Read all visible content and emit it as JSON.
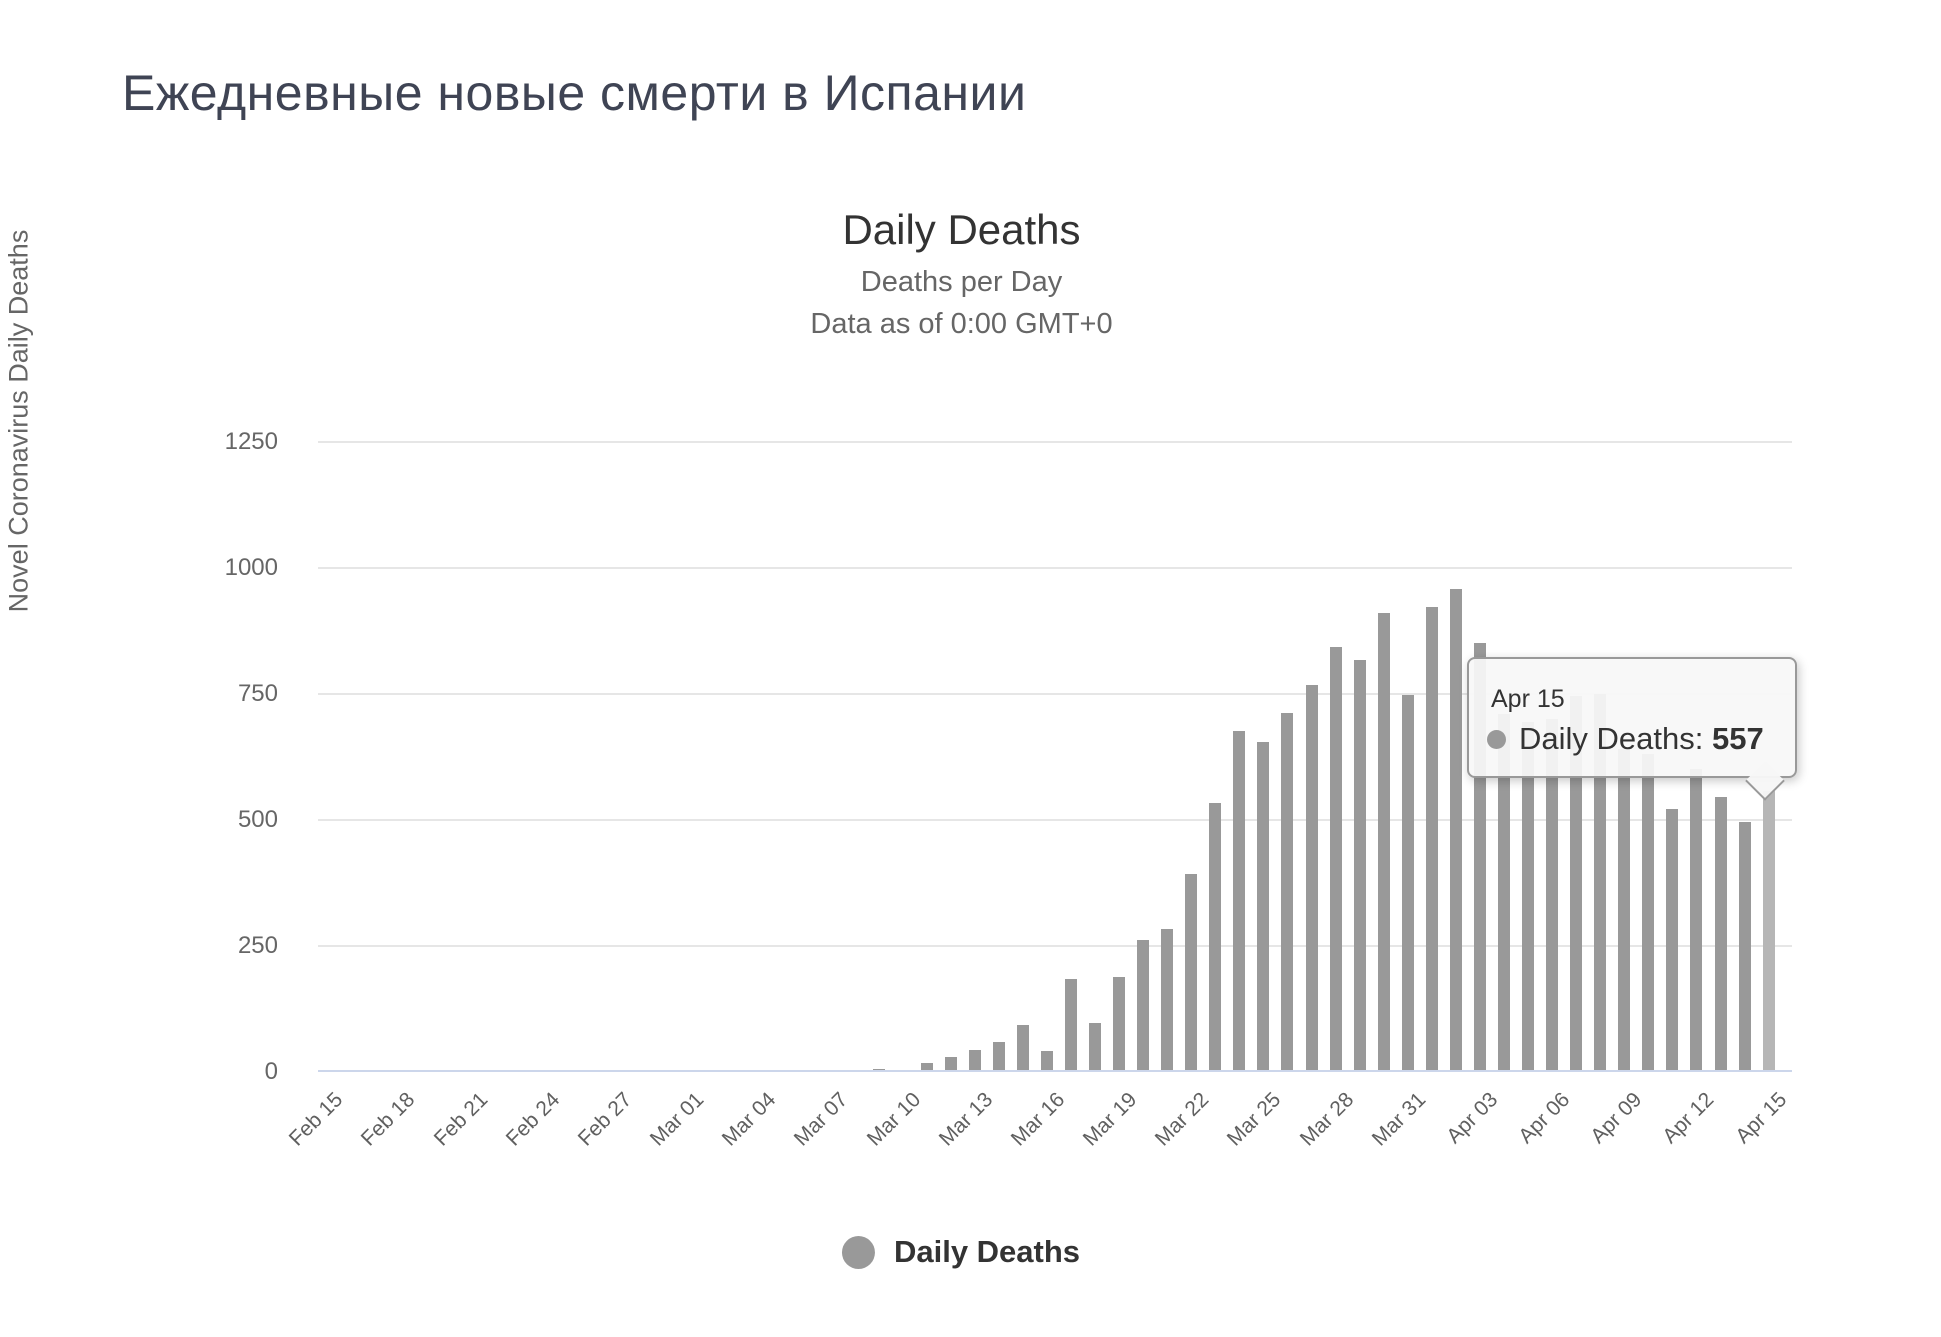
{
  "page": {
    "title": "Ежедневные новые смерти в Испании"
  },
  "chart": {
    "title": "Daily Deaths",
    "subtitle_line1": "Deaths per Day",
    "subtitle_line2": "Data as of 0:00 GMT+0",
    "y_axis_title": "Novel Coronavirus Daily Deaths",
    "legend_label": "Daily Deaths"
  },
  "tooltip": {
    "date": "Apr 15",
    "series_label": "Daily Deaths:",
    "value": "557"
  },
  "colors": {
    "bar": "#999999",
    "bar_highlight": "#b6b6b6",
    "grid": "#e6e6e6",
    "axis_line": "#ccd6eb",
    "title": "#333333",
    "subtitle": "#666666",
    "axis_label": "#666666",
    "page_title": "#3f4454",
    "legend_marker": "#999999",
    "tooltip_border": "#999999",
    "tooltip_background": "#f7f7f7"
  },
  "chart_data": {
    "type": "bar",
    "title": "Daily Deaths",
    "subtitle": "Deaths per Day — Data as of 0:00 GMT+0",
    "xlabel": "",
    "ylabel": "Novel Coronavirus Daily Deaths",
    "ylim": [
      0,
      1250
    ],
    "yticks": [
      0,
      250,
      500,
      750,
      1000,
      1250
    ],
    "grid": true,
    "legend_position": "bottom",
    "x": [
      "Feb 15",
      "Feb 16",
      "Feb 17",
      "Feb 18",
      "Feb 19",
      "Feb 20",
      "Feb 21",
      "Feb 22",
      "Feb 23",
      "Feb 24",
      "Feb 25",
      "Feb 26",
      "Feb 27",
      "Feb 28",
      "Feb 29",
      "Mar 01",
      "Mar 02",
      "Mar 03",
      "Mar 04",
      "Mar 05",
      "Mar 06",
      "Mar 07",
      "Mar 08",
      "Mar 09",
      "Mar 10",
      "Mar 11",
      "Mar 12",
      "Mar 13",
      "Mar 14",
      "Mar 15",
      "Mar 16",
      "Mar 17",
      "Mar 18",
      "Mar 19",
      "Mar 20",
      "Mar 21",
      "Mar 22",
      "Mar 23",
      "Mar 24",
      "Mar 25",
      "Mar 26",
      "Mar 27",
      "Mar 28",
      "Mar 29",
      "Mar 30",
      "Mar 31",
      "Apr 01",
      "Apr 02",
      "Apr 03",
      "Apr 04",
      "Apr 05",
      "Apr 06",
      "Apr 07",
      "Apr 08",
      "Apr 09",
      "Apr 10",
      "Apr 11",
      "Apr 12",
      "Apr 13",
      "Apr 14",
      "Apr 15"
    ],
    "xtick_labels": [
      "Feb 15",
      "Feb 18",
      "Feb 21",
      "Feb 24",
      "Feb 27",
      "Mar 01",
      "Mar 04",
      "Mar 07",
      "Mar 10",
      "Mar 13",
      "Mar 16",
      "Mar 19",
      "Mar 22",
      "Mar 25",
      "Mar 28",
      "Mar 31",
      "Apr 03",
      "Apr 06",
      "Apr 09",
      "Apr 12",
      "Apr 15"
    ],
    "series": [
      {
        "name": "Daily Deaths",
        "values": [
          0,
          0,
          0,
          0,
          0,
          0,
          0,
          0,
          0,
          0,
          0,
          0,
          0,
          0,
          0,
          0,
          0,
          1,
          1,
          1,
          2,
          2,
          3,
          6,
          1,
          18,
          29,
          43,
          60,
          93,
          42,
          185,
          98,
          189,
          262,
          284,
          392,
          534,
          676,
          655,
          712,
          768,
          844,
          818,
          911,
          748,
          922,
          959,
          852,
          710,
          694,
          700,
          747,
          750,
          640,
          630,
          521,
          601,
          546,
          497,
          557
        ]
      }
    ],
    "highlighted_point": {
      "x": "Apr 15",
      "value": 557
    }
  }
}
